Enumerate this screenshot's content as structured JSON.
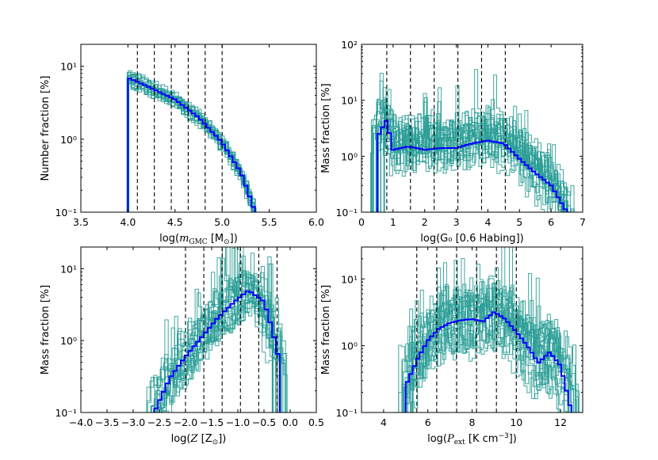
{
  "chart_data": [
    {
      "type": "histogram",
      "id": "mass",
      "xlabel": "log(m_GMC [M_⊙])",
      "xlabel_parts": [
        "log(",
        "m",
        "GMC",
        " [M",
        "⊙",
        "])"
      ],
      "ylabel": "Number fraction [%]",
      "xlim": [
        3.5,
        6.0
      ],
      "ylim": [
        0.1,
        20
      ],
      "yscale": "log",
      "xticks": [
        3.5,
        4.0,
        4.5,
        5.0,
        5.5,
        6.0
      ],
      "xtick_labels": [
        "3.5",
        "4.0",
        "4.5",
        "5.0",
        "5.5",
        "6.0"
      ],
      "yticks": [
        0.1,
        1,
        10
      ],
      "ytick_labels": [
        "10⁻¹",
        "10⁰",
        "10¹"
      ],
      "vlines": [
        4.1,
        4.28,
        4.46,
        4.64,
        4.82,
        5.0
      ],
      "main_series": {
        "name": "total",
        "color": "#0000ff",
        "x": [
          4.0,
          4.25,
          4.5,
          4.75,
          5.0,
          5.2,
          5.35
        ],
        "y": [
          7.0,
          5.0,
          3.5,
          2.0,
          0.9,
          0.35,
          0.1
        ]
      },
      "n_realisations": 20,
      "realisation_color": "#2a9d96"
    },
    {
      "type": "histogram",
      "id": "g0",
      "xlabel": "log(G₀ [0.6 Habing])",
      "ylabel": "Mass fraction [%]",
      "xlim": [
        0,
        7
      ],
      "ylim": [
        0.1,
        100
      ],
      "yscale": "log",
      "xticks": [
        0,
        1,
        2,
        3,
        4,
        5,
        6,
        7
      ],
      "xtick_labels": [
        "0",
        "1",
        "2",
        "3",
        "4",
        "5",
        "6",
        "7"
      ],
      "yticks": [
        0.1,
        1,
        10,
        100
      ],
      "ytick_labels": [
        "10⁻¹",
        "10⁰",
        "10¹",
        "10²"
      ],
      "vlines": [
        0.8,
        1.55,
        2.3,
        3.05,
        3.8,
        4.55
      ],
      "main_series": {
        "name": "total",
        "color": "#0000ff",
        "x": [
          0.5,
          0.8,
          1.0,
          1.5,
          2.0,
          2.5,
          3.0,
          3.5,
          4.0,
          4.5,
          5.0,
          5.5,
          6.0,
          6.5
        ],
        "y": [
          2.2,
          4.5,
          1.3,
          1.5,
          1.3,
          1.4,
          1.4,
          1.7,
          1.9,
          1.7,
          0.9,
          0.5,
          0.3,
          0.1
        ]
      },
      "n_realisations": 20,
      "realisation_color": "#2a9d96"
    },
    {
      "type": "histogram",
      "id": "metallicity",
      "xlabel": "log(Z [Z_⊙])",
      "xlabel_parts": [
        "log(",
        "Z",
        " [Z",
        "⊙",
        "])"
      ],
      "ylabel": "Mass fraction [%]",
      "xlim": [
        -4.0,
        0.5
      ],
      "ylim": [
        0.1,
        20
      ],
      "yscale": "log",
      "xticks": [
        -4.0,
        -3.5,
        -3.0,
        -2.5,
        -2.0,
        -1.5,
        -1.0,
        -0.5,
        0.0,
        0.5
      ],
      "xtick_labels": [
        "−4.0",
        "−3.5",
        "−3.0",
        "−2.5",
        "−2.0",
        "−1.5",
        "−1.0",
        "−0.5",
        "0.0",
        "0.5"
      ],
      "yticks": [
        0.1,
        1,
        10
      ],
      "ytick_labels": [
        "10⁻¹",
        "10⁰",
        "10¹"
      ],
      "vlines": [
        -2.0,
        -1.65,
        -1.3,
        -0.95,
        -0.6,
        -0.25
      ],
      "main_series": {
        "name": "total",
        "color": "#0000ff",
        "x": [
          -2.6,
          -2.3,
          -2.0,
          -1.7,
          -1.4,
          -1.1,
          -0.8,
          -0.5,
          -0.35,
          -0.2
        ],
        "y": [
          0.1,
          0.3,
          0.6,
          1.1,
          2.0,
          3.3,
          5.0,
          3.5,
          1.5,
          0.5
        ]
      },
      "n_realisations": 20,
      "realisation_color": "#2a9d96"
    },
    {
      "type": "histogram",
      "id": "pressure",
      "xlabel": "log(P_ext [K cm⁻³])",
      "xlabel_parts": [
        "log(",
        "P",
        "ext",
        " [K cm",
        "−3",
        "])"
      ],
      "ylabel": "Mass fraction [%]",
      "xlim": [
        3,
        13
      ],
      "ylim": [
        0.1,
        30
      ],
      "yscale": "log",
      "xticks": [
        4,
        6,
        8,
        10,
        12
      ],
      "xtick_labels": [
        "4",
        "6",
        "8",
        "10",
        "12"
      ],
      "yticks": [
        0.1,
        1,
        10
      ],
      "ytick_labels": [
        "10⁻¹",
        "10⁰",
        "10¹"
      ],
      "vlines": [
        5.5,
        6.4,
        7.3,
        8.2,
        9.1,
        10.0
      ],
      "main_series": {
        "name": "total",
        "color": "#0000ff",
        "x": [
          5.0,
          5.5,
          6.0,
          6.5,
          7.0,
          7.5,
          8.0,
          8.5,
          9.0,
          9.5,
          10.0,
          10.5,
          11.0,
          11.5,
          12.0,
          12.5
        ],
        "y": [
          0.25,
          0.6,
          1.2,
          1.8,
          2.2,
          2.4,
          2.5,
          2.3,
          3.2,
          2.5,
          1.6,
          1.0,
          0.55,
          0.8,
          0.5,
          0.1
        ]
      },
      "n_realisations": 20,
      "realisation_color": "#2a9d96"
    }
  ]
}
